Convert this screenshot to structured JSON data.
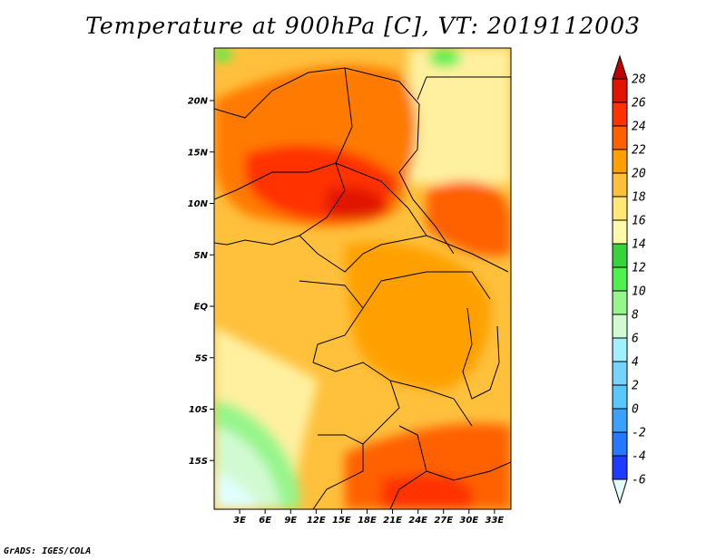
{
  "title": "Temperature at 900hPa [C], VT: 2019112003",
  "credit": "GrADS: IGES/COLA",
  "map": {
    "lat_ticks": [
      "20N",
      "15N",
      "10N",
      "5N",
      "EQ",
      "5S",
      "10S",
      "15S"
    ],
    "lon_ticks": [
      "3E",
      "6E",
      "9E",
      "12E",
      "15E",
      "18E",
      "21E",
      "24E",
      "27E",
      "30E",
      "33E"
    ],
    "lat_values": [
      20,
      15,
      10,
      5,
      0,
      -5,
      -10,
      -15
    ],
    "lon_values": [
      3,
      6,
      9,
      12,
      15,
      18,
      21,
      24,
      27,
      30,
      33
    ]
  },
  "colorbar": {
    "labels": [
      "28",
      "26",
      "24",
      "22",
      "20",
      "18",
      "16",
      "14",
      "12",
      "10",
      "8",
      "6",
      "4",
      "2",
      "0",
      "-2",
      "-4",
      "-6"
    ],
    "colors": [
      "#e1ffff",
      "#1e3cff",
      "#2878ff",
      "#3ca0ff",
      "#5ac8ff",
      "#78d2ff",
      "#a0f0ff",
      "#d2fad2",
      "#96f58c",
      "#50f050",
      "#37d23c",
      "#fffaaa",
      "#ffe878",
      "#ffc03c",
      "#ffa000",
      "#ff6000",
      "#ff3200",
      "#e11400",
      "#c00000"
    ],
    "cap_top_color": "#c00000",
    "cap_bottom_color": "#e1ffff"
  }
}
